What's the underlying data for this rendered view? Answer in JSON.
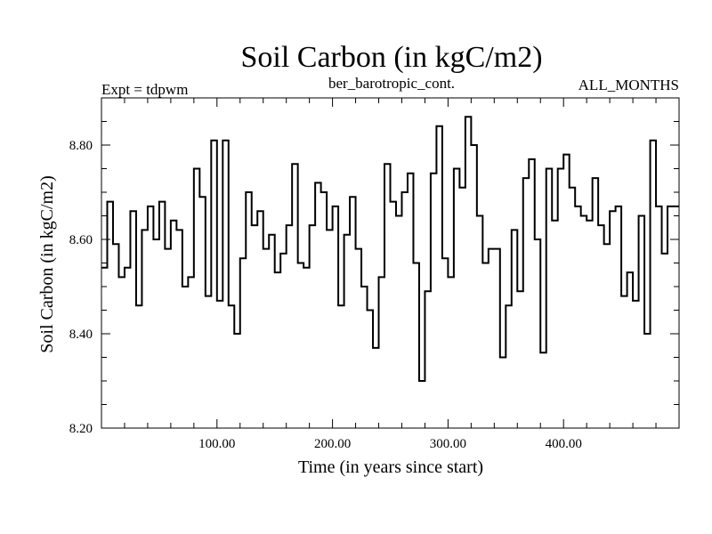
{
  "chart_data": {
    "type": "line",
    "step": true,
    "title": "Soil Carbon (in kgC/m2)",
    "subtitle": "ber_barotropic_cont.",
    "left_label": "Expt = tdpwm",
    "right_label": "ALL_MONTHS",
    "xlabel": "Time (in years since start)",
    "ylabel": "Soil Carbon (in kgC/m2)",
    "xlim": [
      0,
      500
    ],
    "ylim": [
      8.2,
      8.9
    ],
    "xticks": [
      100,
      200,
      300,
      400
    ],
    "xtick_labels": [
      "100.00",
      "200.00",
      "300.00",
      "400.00"
    ],
    "yticks": [
      8.2,
      8.4,
      8.6,
      8.8
    ],
    "ytick_labels": [
      "8.20",
      "8.40",
      "8.60",
      "8.80"
    ],
    "series": [
      {
        "name": "Soil Carbon",
        "x": [
          0,
          5,
          10,
          15,
          20,
          25,
          30,
          35,
          40,
          45,
          50,
          55,
          60,
          65,
          70,
          75,
          80,
          85,
          90,
          95,
          100,
          105,
          110,
          115,
          120,
          125,
          130,
          135,
          140,
          145,
          150,
          155,
          160,
          165,
          170,
          175,
          180,
          185,
          190,
          195,
          200,
          205,
          210,
          215,
          220,
          225,
          230,
          235,
          240,
          245,
          250,
          255,
          260,
          265,
          270,
          275,
          280,
          285,
          290,
          295,
          300,
          305,
          310,
          315,
          320,
          325,
          330,
          335,
          340,
          345,
          350,
          355,
          360,
          365,
          370,
          375,
          380,
          385,
          390,
          395,
          400,
          405,
          410,
          415,
          420,
          425,
          430,
          435,
          440,
          445,
          450,
          455,
          460,
          465,
          470,
          475,
          480,
          485,
          490,
          495
        ],
        "values": [
          8.54,
          8.68,
          8.59,
          8.52,
          8.54,
          8.66,
          8.46,
          8.62,
          8.67,
          8.6,
          8.68,
          8.58,
          8.64,
          8.62,
          8.5,
          8.52,
          8.75,
          8.69,
          8.48,
          8.81,
          8.47,
          8.81,
          8.46,
          8.4,
          8.56,
          8.7,
          8.63,
          8.66,
          8.58,
          8.61,
          8.53,
          8.57,
          8.63,
          8.76,
          8.55,
          8.54,
          8.63,
          8.72,
          8.7,
          8.62,
          8.67,
          8.46,
          8.61,
          8.69,
          8.58,
          8.5,
          8.45,
          8.37,
          8.52,
          8.76,
          8.68,
          8.65,
          8.7,
          8.74,
          8.55,
          8.3,
          8.49,
          8.74,
          8.84,
          8.56,
          8.52,
          8.75,
          8.71,
          8.86,
          8.8,
          8.65,
          8.55,
          8.58,
          8.58,
          8.35,
          8.46,
          8.62,
          8.49,
          8.73,
          8.77,
          8.6,
          8.36,
          8.75,
          8.64,
          8.75,
          8.78,
          8.71,
          8.67,
          8.65,
          8.64,
          8.73,
          8.63,
          8.59,
          8.66,
          8.67,
          8.48,
          8.53,
          8.47,
          8.65,
          8.4,
          8.81,
          8.67,
          8.57,
          8.67,
          8.67
        ]
      }
    ]
  }
}
